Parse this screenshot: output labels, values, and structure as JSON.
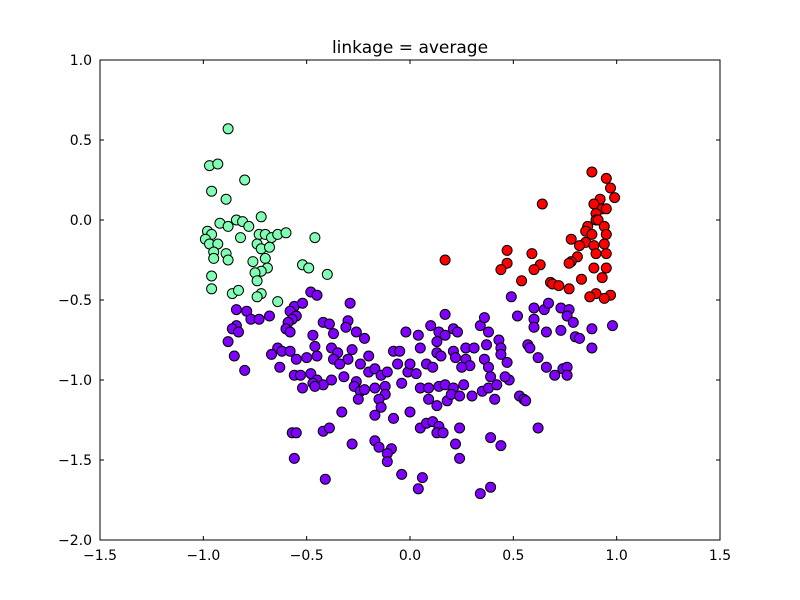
{
  "chart_data": {
    "type": "scatter",
    "title": "linkage = average",
    "xlabel": "",
    "ylabel": "",
    "xlim": [
      -1.5,
      1.5
    ],
    "ylim": [
      -2.0,
      1.0
    ],
    "x_ticks": [
      "−1.5",
      "−1.0",
      "−0.5",
      "0.0",
      "0.5",
      "1.0",
      "1.5"
    ],
    "y_ticks": [
      "−2.0",
      "−1.5",
      "−1.0",
      "−0.5",
      "0.0",
      "0.5",
      "1.0"
    ],
    "grid": false,
    "legend": "none",
    "series": [
      {
        "color": "#80ffb4",
        "points": [
          [
            -0.88,
            0.57
          ],
          [
            -0.97,
            0.34
          ],
          [
            -0.93,
            0.35
          ],
          [
            -0.8,
            0.25
          ],
          [
            -0.96,
            0.18
          ],
          [
            -0.89,
            0.13
          ],
          [
            -0.72,
            0.02
          ],
          [
            -0.92,
            -0.02
          ],
          [
            -0.88,
            -0.04
          ],
          [
            -0.84,
            0.0
          ],
          [
            -0.81,
            -0.01
          ],
          [
            -0.78,
            -0.04
          ],
          [
            -0.98,
            -0.07
          ],
          [
            -0.96,
            -0.09
          ],
          [
            -0.99,
            -0.12
          ],
          [
            -0.82,
            -0.11
          ],
          [
            -0.73,
            -0.09
          ],
          [
            -0.7,
            -0.09
          ],
          [
            -0.67,
            -0.11
          ],
          [
            -0.64,
            -0.09
          ],
          [
            -0.6,
            -0.08
          ],
          [
            -0.46,
            -0.11
          ],
          [
            -0.97,
            -0.15
          ],
          [
            -0.93,
            -0.15
          ],
          [
            -0.74,
            -0.15
          ],
          [
            -0.95,
            -0.2
          ],
          [
            -0.89,
            -0.21
          ],
          [
            -0.72,
            -0.18
          ],
          [
            -0.68,
            -0.17
          ],
          [
            -0.95,
            -0.24
          ],
          [
            -0.88,
            -0.25
          ],
          [
            -0.76,
            -0.26
          ],
          [
            -0.7,
            -0.24
          ],
          [
            -0.69,
            -0.3
          ],
          [
            -0.72,
            -0.32
          ],
          [
            -0.75,
            -0.33
          ],
          [
            -0.52,
            -0.28
          ],
          [
            -0.49,
            -0.3
          ],
          [
            -0.4,
            -0.34
          ],
          [
            -0.96,
            -0.35
          ],
          [
            -0.74,
            -0.38
          ],
          [
            -0.96,
            -0.43
          ],
          [
            -0.86,
            -0.46
          ],
          [
            -0.83,
            -0.44
          ],
          [
            -0.72,
            -0.46
          ],
          [
            -0.74,
            -0.48
          ],
          [
            -0.64,
            -0.51
          ]
        ]
      },
      {
        "color": "#ff0000",
        "points": [
          [
            0.88,
            0.3
          ],
          [
            0.95,
            0.26
          ],
          [
            0.97,
            0.2
          ],
          [
            0.92,
            0.13
          ],
          [
            0.99,
            0.14
          ],
          [
            0.89,
            0.1
          ],
          [
            0.93,
            0.07
          ],
          [
            0.95,
            0.07
          ],
          [
            0.64,
            0.1
          ],
          [
            0.9,
            0.04
          ],
          [
            0.9,
            0.0
          ],
          [
            0.91,
            0.0
          ],
          [
            0.86,
            -0.04
          ],
          [
            0.94,
            -0.04
          ],
          [
            0.85,
            -0.07
          ],
          [
            0.88,
            -0.09
          ],
          [
            0.78,
            -0.12
          ],
          [
            0.95,
            -0.09
          ],
          [
            0.85,
            -0.14
          ],
          [
            0.89,
            -0.16
          ],
          [
            0.82,
            -0.16
          ],
          [
            0.94,
            -0.15
          ],
          [
            0.47,
            -0.19
          ],
          [
            0.59,
            -0.21
          ],
          [
            0.9,
            -0.21
          ],
          [
            0.95,
            -0.21
          ],
          [
            0.81,
            -0.23
          ],
          [
            0.17,
            -0.25
          ],
          [
            0.78,
            -0.26
          ],
          [
            0.47,
            -0.27
          ],
          [
            0.77,
            -0.27
          ],
          [
            0.63,
            -0.28
          ],
          [
            0.6,
            -0.31
          ],
          [
            0.44,
            -0.31
          ],
          [
            0.89,
            -0.3
          ],
          [
            0.95,
            -0.3
          ],
          [
            0.54,
            -0.38
          ],
          [
            0.68,
            -0.39
          ],
          [
            0.69,
            -0.4
          ],
          [
            0.72,
            -0.41
          ],
          [
            0.83,
            -0.37
          ],
          [
            0.9,
            -0.46
          ],
          [
            0.97,
            -0.47
          ],
          [
            0.87,
            -0.48
          ],
          [
            0.94,
            -0.49
          ],
          [
            0.93,
            -0.36
          ],
          [
            0.77,
            -0.43
          ]
        ]
      },
      {
        "color": "#7f00ff",
        "points": [
          [
            -0.48,
            -0.45
          ],
          [
            -0.45,
            -0.47
          ],
          [
            -0.56,
            -0.54
          ],
          [
            -0.52,
            -0.52
          ],
          [
            -0.29,
            -0.52
          ],
          [
            -0.58,
            -0.57
          ],
          [
            -0.55,
            -0.6
          ],
          [
            -0.57,
            -0.62
          ],
          [
            -0.84,
            -0.56
          ],
          [
            -0.79,
            -0.57
          ],
          [
            -0.77,
            -0.62
          ],
          [
            -0.73,
            -0.62
          ],
          [
            -0.68,
            -0.6
          ],
          [
            -0.84,
            -0.66
          ],
          [
            -0.86,
            -0.68
          ],
          [
            -0.83,
            -0.7
          ],
          [
            -0.88,
            -0.76
          ],
          [
            -0.59,
            -0.64
          ],
          [
            -0.6,
            -0.68
          ],
          [
            -0.58,
            -0.7
          ],
          [
            -0.42,
            -0.64
          ],
          [
            -0.39,
            -0.65
          ],
          [
            -0.3,
            -0.63
          ],
          [
            -0.31,
            -0.67
          ],
          [
            -0.47,
            -0.72
          ],
          [
            -0.37,
            -0.71
          ],
          [
            -0.26,
            -0.7
          ],
          [
            -0.22,
            -0.74
          ],
          [
            -0.64,
            -0.8
          ],
          [
            -0.62,
            -0.82
          ],
          [
            -0.58,
            -0.82
          ],
          [
            -0.67,
            -0.84
          ],
          [
            -0.46,
            -0.79
          ],
          [
            -0.38,
            -0.8
          ],
          [
            -0.35,
            -0.83
          ],
          [
            -0.28,
            -0.81
          ],
          [
            -0.85,
            -0.85
          ],
          [
            -0.63,
            -0.92
          ],
          [
            -0.55,
            -0.87
          ],
          [
            -0.5,
            -0.86
          ],
          [
            -0.45,
            -0.85
          ],
          [
            -0.37,
            -0.87
          ],
          [
            -0.3,
            -0.87
          ],
          [
            -0.2,
            -0.85
          ],
          [
            -0.8,
            -0.94
          ],
          [
            -0.56,
            -0.97
          ],
          [
            -0.53,
            -0.97
          ],
          [
            -0.48,
            -0.96
          ],
          [
            -0.45,
            -1.0
          ],
          [
            -0.42,
            -1.03
          ],
          [
            -0.47,
            -1.02
          ],
          [
            -0.38,
            -1.0
          ],
          [
            -0.32,
            -0.98
          ],
          [
            -0.26,
            -1.01
          ],
          [
            -0.2,
            -0.95
          ],
          [
            -0.17,
            -0.93
          ],
          [
            -0.14,
            -0.97
          ],
          [
            -0.11,
            -0.95
          ],
          [
            -0.08,
            -0.82
          ],
          [
            -0.05,
            -0.82
          ],
          [
            -0.02,
            -0.7
          ],
          [
            0.04,
            -0.72
          ],
          [
            0.05,
            -0.8
          ],
          [
            0.08,
            -0.9
          ],
          [
            -0.52,
            -1.05
          ],
          [
            -0.46,
            -1.04
          ],
          [
            -0.27,
            -1.04
          ],
          [
            -0.24,
            -1.07
          ],
          [
            -0.22,
            -1.06
          ],
          [
            -0.17,
            -1.05
          ],
          [
            -0.12,
            -1.04
          ],
          [
            -0.12,
            -1.09
          ],
          [
            -0.04,
            -1.02
          ],
          [
            -0.01,
            -0.95
          ],
          [
            0.03,
            -0.96
          ],
          [
            0.05,
            -1.05
          ],
          [
            0.09,
            -1.05
          ],
          [
            0.14,
            -1.04
          ],
          [
            0.17,
            -1.03
          ],
          [
            0.21,
            -1.05
          ],
          [
            0.26,
            -1.03
          ],
          [
            -0.33,
            -1.2
          ],
          [
            -0.25,
            -1.12
          ],
          [
            -0.15,
            -1.12
          ],
          [
            -0.14,
            -1.17
          ],
          [
            -0.17,
            -1.22
          ],
          [
            -0.08,
            -1.24
          ],
          [
            0.0,
            -1.2
          ],
          [
            0.09,
            -1.12
          ],
          [
            0.13,
            -1.16
          ],
          [
            0.18,
            -1.13
          ],
          [
            0.2,
            -1.09
          ],
          [
            0.24,
            -1.1
          ],
          [
            0.3,
            -1.1
          ],
          [
            0.35,
            -1.07
          ],
          [
            0.38,
            -1.05
          ],
          [
            0.41,
            -1.12
          ],
          [
            0.42,
            -1.03
          ],
          [
            0.48,
            -1.0
          ],
          [
            0.53,
            -1.1
          ],
          [
            0.55,
            -1.12
          ],
          [
            0.56,
            -1.13
          ],
          [
            -0.57,
            -1.33
          ],
          [
            -0.55,
            -1.33
          ],
          [
            -0.42,
            -1.32
          ],
          [
            -0.39,
            -1.3
          ],
          [
            -0.28,
            -1.4
          ],
          [
            -0.17,
            -1.38
          ],
          [
            -0.15,
            -1.42
          ],
          [
            -0.09,
            -1.43
          ],
          [
            -0.11,
            -1.46
          ],
          [
            -0.11,
            -1.51
          ],
          [
            0.05,
            -1.3
          ],
          [
            0.08,
            -1.27
          ],
          [
            0.11,
            -1.26
          ],
          [
            0.14,
            -1.29
          ],
          [
            0.13,
            -1.33
          ],
          [
            0.16,
            -1.33
          ],
          [
            0.22,
            -1.4
          ],
          [
            0.24,
            -1.3
          ],
          [
            0.39,
            -1.36
          ],
          [
            0.44,
            -1.41
          ],
          [
            0.62,
            -1.3
          ],
          [
            -0.56,
            -1.49
          ],
          [
            -0.04,
            -1.59
          ],
          [
            0.06,
            -1.61
          ],
          [
            0.04,
            -1.68
          ],
          [
            0.24,
            -1.49
          ],
          [
            0.34,
            -1.71
          ],
          [
            0.39,
            -1.67
          ],
          [
            -0.41,
            -1.62
          ],
          [
            0.1,
            -0.66
          ],
          [
            0.14,
            -0.7
          ],
          [
            0.17,
            -0.59
          ],
          [
            0.17,
            -0.72
          ],
          [
            0.21,
            -0.68
          ],
          [
            0.23,
            -0.7
          ],
          [
            0.13,
            -0.76
          ],
          [
            0.13,
            -0.83
          ],
          [
            0.15,
            -0.85
          ],
          [
            0.21,
            -0.82
          ],
          [
            0.22,
            -0.86
          ],
          [
            0.27,
            -0.8
          ],
          [
            0.27,
            -0.87
          ],
          [
            0.29,
            -0.91
          ],
          [
            0.31,
            -0.8
          ],
          [
            0.34,
            -0.66
          ],
          [
            0.36,
            -0.61
          ],
          [
            0.38,
            -0.7
          ],
          [
            0.37,
            -0.78
          ],
          [
            0.36,
            -0.87
          ],
          [
            0.38,
            -0.92
          ],
          [
            0.39,
            -0.98
          ],
          [
            0.43,
            -0.75
          ],
          [
            0.44,
            -0.8
          ],
          [
            0.44,
            -0.84
          ],
          [
            0.47,
            -0.89
          ],
          [
            0.46,
            -0.98
          ],
          [
            0.49,
            -0.48
          ],
          [
            0.52,
            -0.6
          ],
          [
            0.57,
            -0.78
          ],
          [
            0.6,
            -0.55
          ],
          [
            0.6,
            -0.62
          ],
          [
            0.65,
            -0.56
          ],
          [
            0.67,
            -0.52
          ],
          [
            0.73,
            -0.55
          ],
          [
            0.77,
            -0.56
          ],
          [
            0.76,
            -0.6
          ],
          [
            0.79,
            -0.64
          ],
          [
            0.6,
            -0.67
          ],
          [
            0.66,
            -0.7
          ],
          [
            0.73,
            -0.69
          ],
          [
            0.8,
            -0.73
          ],
          [
            0.82,
            -0.74
          ],
          [
            0.88,
            -0.68
          ],
          [
            0.88,
            -0.8
          ],
          [
            0.98,
            -0.66
          ],
          [
            0.58,
            -0.8
          ],
          [
            0.62,
            -0.86
          ],
          [
            0.66,
            -0.92
          ],
          [
            0.7,
            -0.97
          ],
          [
            0.74,
            -0.93
          ],
          [
            0.76,
            -0.92
          ],
          [
            0.76,
            -0.97
          ],
          [
            -0.34,
            -0.9
          ],
          [
            -0.24,
            -0.9
          ],
          [
            -0.06,
            -0.9
          ],
          [
            0.0,
            -0.9
          ],
          [
            0.11,
            -0.92
          ],
          [
            0.25,
            -0.92
          ]
        ]
      }
    ]
  }
}
